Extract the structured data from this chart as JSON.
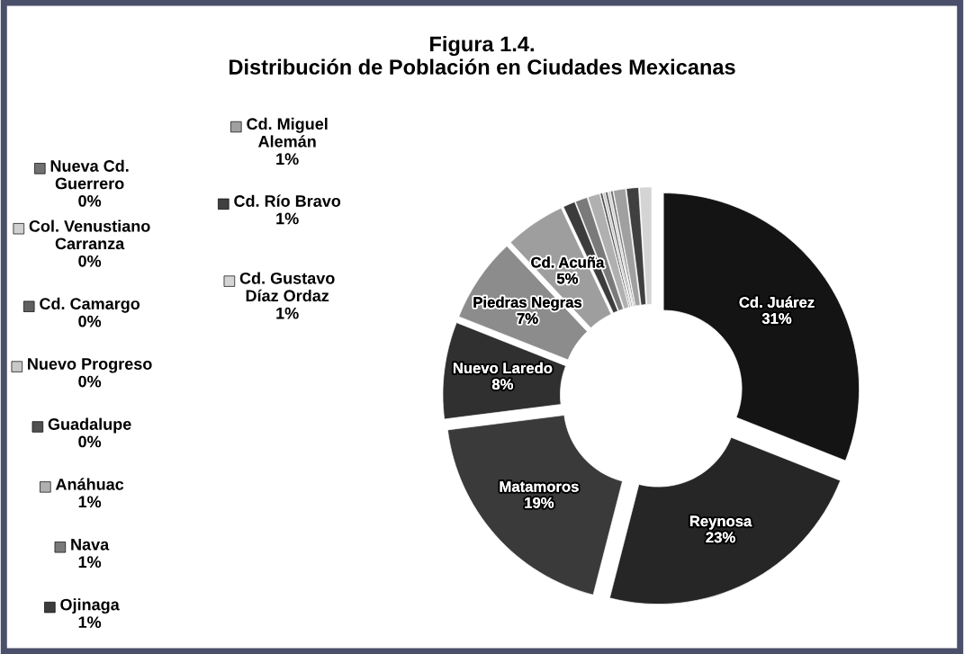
{
  "chart_data": {
    "type": "donut",
    "title": "Figura 1.4.\nDistribución de Población en Ciudades Mexicanas",
    "categories": [
      "Cd. Juárez",
      "Reynosa",
      "Matamoros",
      "Nuevo Laredo",
      "Piedras Negras",
      "Cd. Acuña",
      "Ojinaga",
      "Nava",
      "Anáhuac",
      "Guadalupe",
      "Nuevo Progreso",
      "Cd. Camargo",
      "Col. Venustiano\nCarranza",
      "Nueva Cd.\nGuerrero",
      "Cd. Miguel\nAlemán",
      "Cd. Río Bravo",
      "Cd. Gustavo\nDíaz Ordaz"
    ],
    "values": [
      31,
      23,
      19,
      8,
      7,
      5,
      1,
      1,
      1,
      0.2,
      0.2,
      0.2,
      0.2,
      0.2,
      1,
      1,
      1
    ],
    "value_labels": [
      "31%",
      "23%",
      "19%",
      "8%",
      "7%",
      "5%",
      "1%",
      "1%",
      "1%",
      "0%",
      "0%",
      "0%",
      "0%",
      "0%",
      "1%",
      "1%",
      "1%"
    ],
    "colors": [
      "#141414",
      "#262626",
      "#3a3a3a",
      "#303030",
      "#8c8c8c",
      "#9e9e9e",
      "#3c3c3c",
      "#7a7a7a",
      "#b0b0b0",
      "#505050",
      "#c8c8c8",
      "#606060",
      "#d0d0d0",
      "#707070",
      "#a0a0a0",
      "#404040",
      "#d4d4d4"
    ],
    "legend": "left"
  }
}
